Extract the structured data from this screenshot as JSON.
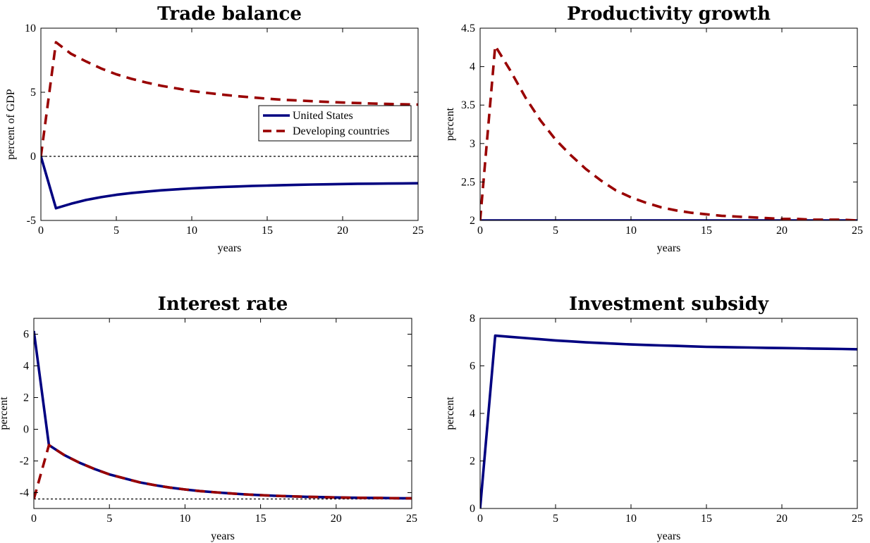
{
  "colors": {
    "united_states": "#000080",
    "developing_countries": "#990000",
    "reference_line": "#000000"
  },
  "legend": {
    "united_states": "United States",
    "developing_countries": "Developing countries",
    "placement": "upper-right inside Trade balance panel"
  },
  "chart_data": [
    {
      "type": "line",
      "title": "Trade balance",
      "xlabel": "years",
      "ylabel": "percent of GDP",
      "xlim": [
        0,
        25
      ],
      "ylim": [
        -5,
        10
      ],
      "xticks": [
        0,
        5,
        10,
        15,
        20,
        25
      ],
      "xtick_labels": [
        "0",
        "5",
        "10",
        "15",
        "20",
        "25"
      ],
      "yticks": [
        -5,
        0,
        5,
        10
      ],
      "ytick_labels": [
        "-5",
        "0",
        "5",
        "10"
      ],
      "reference_line": 0,
      "grid": false,
      "legend": true,
      "series": [
        {
          "name": "United States",
          "style": "solid",
          "x": [
            0,
            1,
            2,
            3,
            4,
            5,
            6,
            7,
            8,
            9,
            10,
            11,
            12,
            13,
            14,
            15,
            16,
            17,
            18,
            19,
            20,
            21,
            22,
            23,
            24,
            25
          ],
          "y": [
            0,
            -4.05,
            -3.7,
            -3.4,
            -3.18,
            -3.0,
            -2.86,
            -2.75,
            -2.65,
            -2.57,
            -2.5,
            -2.44,
            -2.39,
            -2.35,
            -2.31,
            -2.28,
            -2.25,
            -2.22,
            -2.2,
            -2.18,
            -2.16,
            -2.14,
            -2.13,
            -2.12,
            -2.11,
            -2.1
          ]
        },
        {
          "name": "Developing countries",
          "style": "dashed",
          "x": [
            0,
            1,
            2,
            3,
            4,
            5,
            6,
            7,
            8,
            9,
            10,
            11,
            12,
            13,
            14,
            15,
            16,
            17,
            18,
            19,
            20,
            21,
            22,
            23,
            24,
            25
          ],
          "y": [
            0,
            8.9,
            8.0,
            7.4,
            6.85,
            6.4,
            6.05,
            5.75,
            5.5,
            5.3,
            5.1,
            4.95,
            4.82,
            4.7,
            4.6,
            4.5,
            4.42,
            4.36,
            4.3,
            4.25,
            4.2,
            4.16,
            4.12,
            4.09,
            4.06,
            4.04
          ]
        }
      ]
    },
    {
      "type": "line",
      "title": "Productivity growth",
      "xlabel": "years",
      "ylabel": "percent",
      "xlim": [
        0,
        25
      ],
      "ylim": [
        2,
        4.5
      ],
      "xticks": [
        0,
        5,
        10,
        15,
        20,
        25
      ],
      "xtick_labels": [
        "0",
        "5",
        "10",
        "15",
        "20",
        "25"
      ],
      "yticks": [
        2,
        2.5,
        3,
        3.5,
        4,
        4.5
      ],
      "ytick_labels": [
        "2",
        "2.5",
        "3",
        "3.5",
        "4",
        "4.5"
      ],
      "reference_line": null,
      "grid": false,
      "legend": false,
      "series": [
        {
          "name": "United States",
          "style": "solid",
          "x": [
            0,
            25
          ],
          "y": [
            2,
            2
          ]
        },
        {
          "name": "Developing countries",
          "style": "dashed",
          "x": [
            0,
            1,
            2,
            3,
            4,
            5,
            6,
            7,
            8,
            9,
            10,
            11,
            12,
            13,
            14,
            15,
            16,
            17,
            18,
            19,
            20,
            21,
            22,
            23,
            24,
            25
          ],
          "y": [
            2,
            4.27,
            3.95,
            3.6,
            3.3,
            3.05,
            2.85,
            2.67,
            2.52,
            2.39,
            2.3,
            2.23,
            2.17,
            2.13,
            2.1,
            2.08,
            2.06,
            2.05,
            2.04,
            2.03,
            2.02,
            2.02,
            2.01,
            2.01,
            2.01,
            2.0
          ]
        }
      ]
    },
    {
      "type": "line",
      "title": "Interest rate",
      "xlabel": "years",
      "ylabel": "percent",
      "xlim": [
        0,
        25
      ],
      "ylim": [
        -5,
        7
      ],
      "xticks": [
        0,
        5,
        10,
        15,
        20,
        25
      ],
      "xtick_labels": [
        "0",
        "5",
        "10",
        "15",
        "20",
        "25"
      ],
      "yticks": [
        -4,
        -2,
        0,
        2,
        4,
        6
      ],
      "ytick_labels": [
        "-4",
        "-2",
        "0",
        "2",
        "4",
        "6"
      ],
      "reference_line": -4.4,
      "grid": false,
      "legend": false,
      "series": [
        {
          "name": "United States",
          "style": "solid",
          "x": [
            0,
            1,
            2,
            3,
            4,
            5,
            6,
            7,
            8,
            9,
            10,
            11,
            12,
            13,
            14,
            15,
            16,
            17,
            18,
            19,
            20,
            21,
            22,
            23,
            24,
            25
          ],
          "y": [
            6.2,
            -1.0,
            -1.62,
            -2.1,
            -2.5,
            -2.85,
            -3.1,
            -3.35,
            -3.53,
            -3.68,
            -3.8,
            -3.9,
            -3.98,
            -4.05,
            -4.11,
            -4.16,
            -4.2,
            -4.23,
            -4.26,
            -4.28,
            -4.3,
            -4.32,
            -4.33,
            -4.34,
            -4.35,
            -4.36
          ]
        },
        {
          "name": "Developing countries",
          "style": "dashed",
          "x": [
            0,
            1,
            2,
            3,
            4,
            5,
            6,
            7,
            8,
            9,
            10,
            11,
            12,
            13,
            14,
            15,
            16,
            17,
            18,
            19,
            20,
            21,
            22,
            23,
            24,
            25
          ],
          "y": [
            -4.4,
            -1.0,
            -1.62,
            -2.1,
            -2.5,
            -2.85,
            -3.1,
            -3.35,
            -3.53,
            -3.68,
            -3.8,
            -3.9,
            -3.98,
            -4.05,
            -4.11,
            -4.16,
            -4.2,
            -4.23,
            -4.26,
            -4.28,
            -4.3,
            -4.32,
            -4.33,
            -4.34,
            -4.35,
            -4.36
          ]
        }
      ]
    },
    {
      "type": "line",
      "title": "Investment subsidy",
      "xlabel": "years",
      "ylabel": "percent",
      "xlim": [
        0,
        25
      ],
      "ylim": [
        0,
        8
      ],
      "xticks": [
        0,
        5,
        10,
        15,
        20,
        25
      ],
      "xtick_labels": [
        "0",
        "5",
        "10",
        "15",
        "20",
        "25"
      ],
      "yticks": [
        0,
        2,
        4,
        6,
        8
      ],
      "ytick_labels": [
        "0",
        "2",
        "4",
        "6",
        "8"
      ],
      "reference_line": null,
      "grid": false,
      "legend": false,
      "series": [
        {
          "name": "United States",
          "style": "solid",
          "x": [
            0,
            1,
            2,
            3,
            4,
            5,
            6,
            7,
            8,
            9,
            10,
            11,
            12,
            13,
            14,
            15,
            16,
            17,
            18,
            19,
            20,
            21,
            22,
            23,
            24,
            25
          ],
          "y": [
            0,
            7.27,
            7.22,
            7.17,
            7.12,
            7.07,
            7.03,
            6.99,
            6.96,
            6.93,
            6.9,
            6.88,
            6.86,
            6.84,
            6.82,
            6.8,
            6.79,
            6.78,
            6.77,
            6.76,
            6.75,
            6.74,
            6.73,
            6.72,
            6.71,
            6.7
          ]
        }
      ]
    }
  ]
}
